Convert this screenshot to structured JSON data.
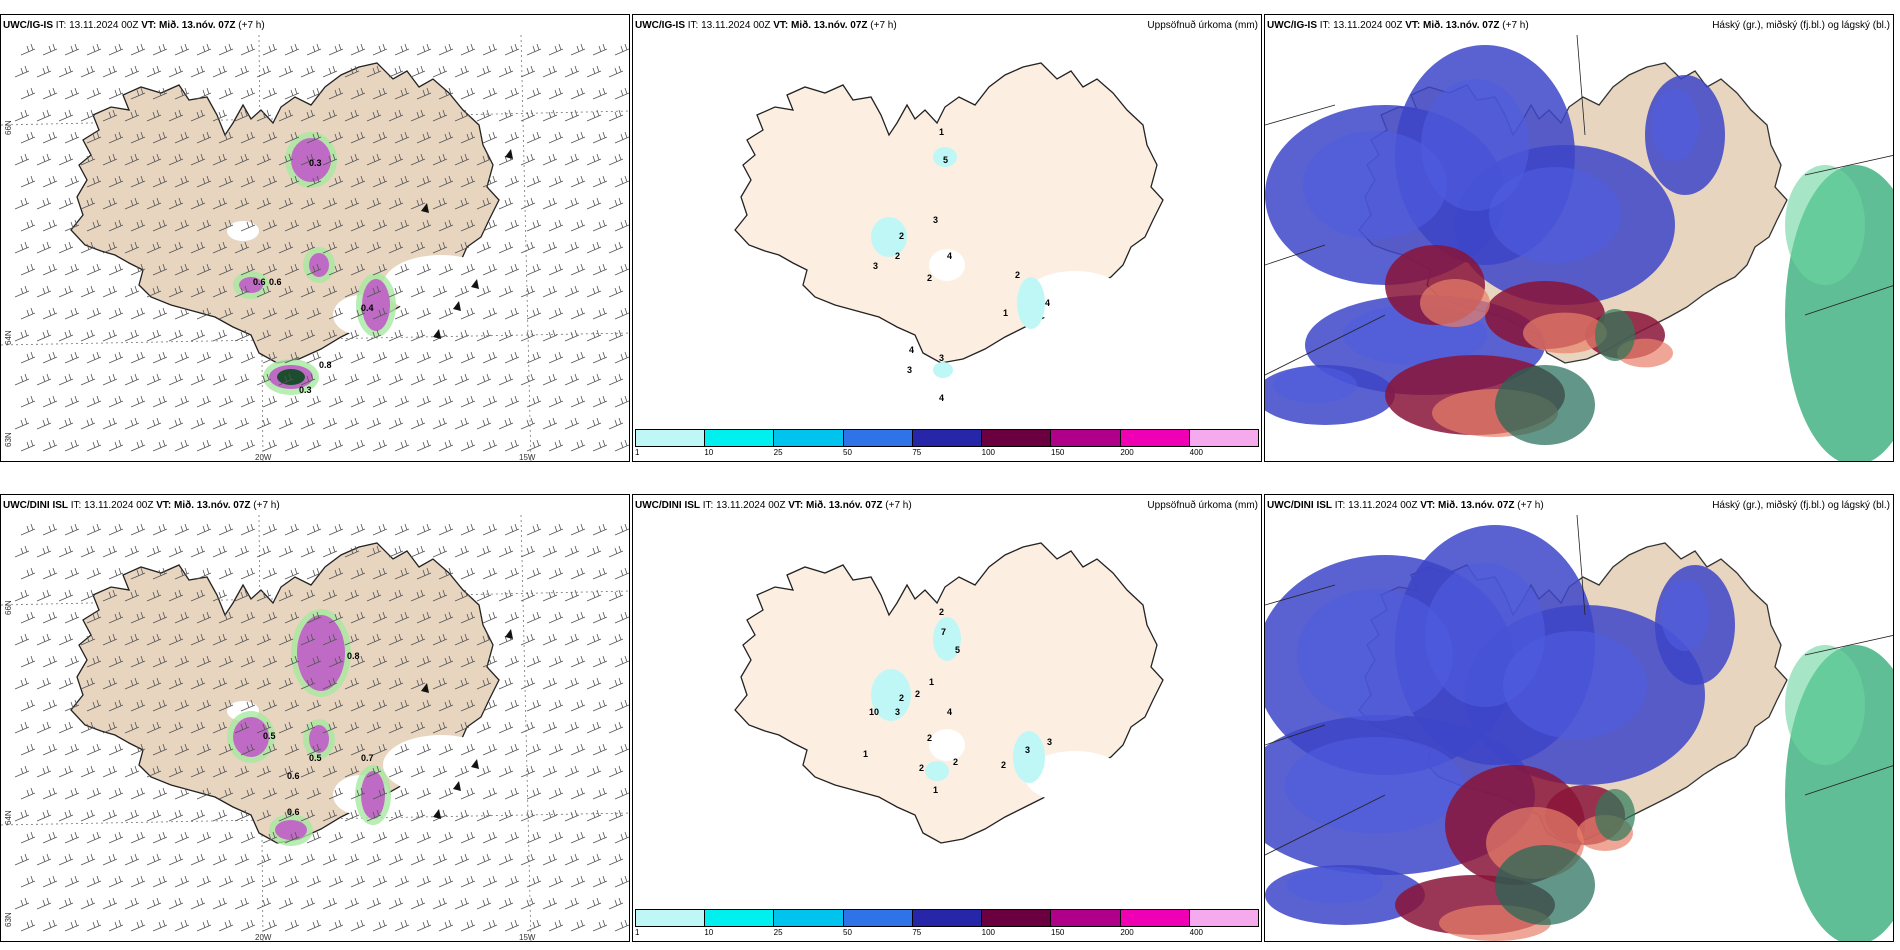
{
  "panels": {
    "p1": {
      "model": "UWC/IG-IS",
      "it_label": "IT:",
      "it": "13.11.2024 00Z",
      "vt_label": "VT:",
      "vt": "Mið. 13.nóv. 07Z",
      "lead": "(+7 h)",
      "right_title": ""
    },
    "p2": {
      "model": "UWC/IG-IS",
      "it_label": "IT:",
      "it": "13.11.2024 00Z",
      "vt_label": "VT:",
      "vt": "Mið. 13.nóv. 07Z",
      "lead": "(+7 h)",
      "right_title": "Uppsöfnuð úrkoma (mm)"
    },
    "p3": {
      "model": "UWC/IG-IS",
      "it_label": "IT:",
      "it": "13.11.2024 00Z",
      "vt_label": "VT:",
      "vt": "Mið. 13.nóv. 07Z",
      "lead": "(+7 h)",
      "right_title": "Háský (gr.), miðský (fj.bl.) og lágský (bl.)"
    },
    "p4": {
      "model": "UWC/DINI ISL",
      "it_label": "IT:",
      "it": "13.11.2024 00Z",
      "vt_label": "VT:",
      "vt": "Mið. 13.nóv. 07Z",
      "lead": "(+7 h)",
      "right_title": ""
    },
    "p5": {
      "model": "UWC/DINI ISL",
      "it_label": "IT:",
      "it": "13.11.2024 00Z",
      "vt_label": "VT:",
      "vt": "Mið. 13.nóv. 07Z",
      "lead": "(+7 h)",
      "right_title": "Uppsöfnuð úrkoma (mm)"
    },
    "p6": {
      "model": "UWC/DINI ISL",
      "it_label": "IT:",
      "it": "13.11.2024 00Z",
      "vt_label": "VT:",
      "vt": "Mið. 13.nóv. 07Z",
      "lead": "(+7 h)",
      "right_title": "Háský (gr.), miðský (fj.bl.) og lágský (bl.)"
    }
  },
  "axes": {
    "lon": [
      "20W",
      "15W"
    ],
    "lat": [
      "66N",
      "64N",
      "63N"
    ]
  },
  "colorbar": {
    "ticks": [
      "1",
      "10",
      "25",
      "50",
      "75",
      "100",
      "150",
      "200",
      "400"
    ],
    "colors": [
      "#bff7f7",
      "#00f0f0",
      "#00c4ee",
      "#2f73e8",
      "#2626a8",
      "#6a0040",
      "#b0008a",
      "#f000b4",
      "#f5aaee"
    ]
  },
  "precip_labels": {
    "p2": [
      "1",
      "5",
      "3",
      "2",
      "2",
      "3",
      "4",
      "2",
      "2",
      "1",
      "4",
      "4",
      "3",
      "3",
      "4"
    ],
    "p5": [
      "2",
      "7",
      "5",
      "1",
      "2",
      "2",
      "10",
      "3",
      "4",
      "2",
      "2",
      "2",
      "2",
      "3",
      "3",
      "1",
      "1"
    ]
  },
  "wind_labels": {
    "p1": [
      "0.6",
      "0.6",
      "0.4",
      "0.8",
      "0.3",
      "0.3"
    ],
    "p4": [
      "0.8",
      "0.5",
      "0.5",
      "0.6",
      "0.7",
      "0.6"
    ]
  },
  "colors": {
    "land": "#e8d5c0",
    "land_light": "#fcefe2",
    "coast": "#222222"
  }
}
